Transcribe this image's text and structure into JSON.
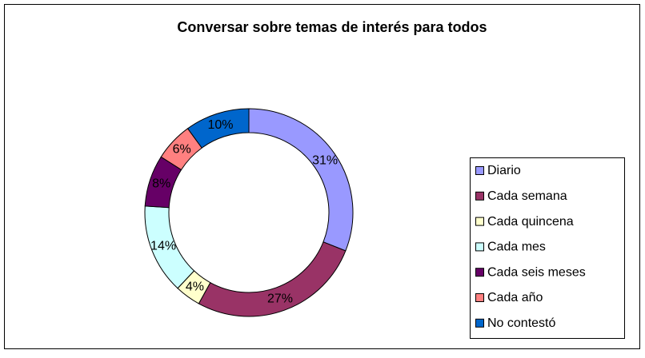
{
  "chart_data": {
    "type": "donut",
    "title": "Conversar sobre temas de interés para todos",
    "categories": [
      "Diario",
      "Cada semana",
      "Cada quincena",
      "Cada mes",
      "Cada seis meses",
      "Cada año",
      "No contestó"
    ],
    "values": [
      31,
      27,
      4,
      14,
      8,
      6,
      10
    ],
    "value_labels": [
      "31%",
      "27%",
      "4%",
      "14%",
      "8%",
      "6%",
      "10%"
    ],
    "colors": [
      "#9999FF",
      "#993366",
      "#FFFFCC",
      "#CCFFFF",
      "#660066",
      "#FF8080",
      "#0066CC"
    ],
    "legend": "right"
  }
}
